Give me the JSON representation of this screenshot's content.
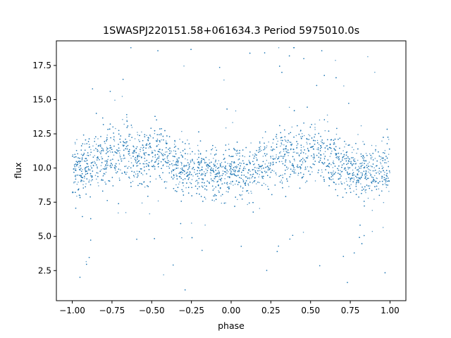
{
  "chart_data": {
    "type": "scatter",
    "title": "1SWASPJ220151.58+061634.3 Period 5975010.0s",
    "xlabel": "phase",
    "ylabel": "flux",
    "xlim": [
      -1.1,
      1.1
    ],
    "ylim": [
      0.3,
      19.3
    ],
    "x_ticks": [
      -1.0,
      -0.75,
      -0.5,
      -0.25,
      0.0,
      0.25,
      0.5,
      0.75,
      1.0
    ],
    "x_tick_labels": [
      "−1.00",
      "−0.75",
      "−0.50",
      "−0.25",
      "0.00",
      "0.25",
      "0.50",
      "0.75",
      "1.00"
    ],
    "y_ticks": [
      2.5,
      5.0,
      7.5,
      10.0,
      12.5,
      15.0,
      17.5
    ],
    "y_tick_labels": [
      "2.5",
      "5.0",
      "7.5",
      "10.0",
      "12.5",
      "15.0",
      "17.5"
    ],
    "grid": false,
    "legend": "none",
    "marker_color": "#1f77b4",
    "x_domain": [
      -1.0,
      1.0
    ],
    "profile": [
      {
        "phase": -1.0,
        "flux": 10.0,
        "spread": 1.9
      },
      {
        "phase": -0.9,
        "flux": 10.3,
        "spread": 1.8
      },
      {
        "phase": -0.75,
        "flux": 10.8,
        "spread": 2.0
      },
      {
        "phase": -0.65,
        "flux": 11.2,
        "spread": 2.0
      },
      {
        "phase": -0.55,
        "flux": 10.6,
        "spread": 2.0
      },
      {
        "phase": -0.48,
        "flux": 11.4,
        "spread": 2.1
      },
      {
        "phase": -0.4,
        "flux": 10.9,
        "spread": 1.8
      },
      {
        "phase": -0.3,
        "flux": 10.0,
        "spread": 1.7
      },
      {
        "phase": -0.2,
        "flux": 9.9,
        "spread": 1.6
      },
      {
        "phase": -0.1,
        "flux": 9.6,
        "spread": 1.6
      },
      {
        "phase": 0.0,
        "flux": 9.5,
        "spread": 1.7
      },
      {
        "phase": 0.1,
        "flux": 9.6,
        "spread": 1.7
      },
      {
        "phase": 0.2,
        "flux": 10.4,
        "spread": 1.9
      },
      {
        "phase": 0.3,
        "flux": 10.9,
        "spread": 2.0
      },
      {
        "phase": 0.4,
        "flux": 10.8,
        "spread": 2.0
      },
      {
        "phase": 0.45,
        "flux": 10.7,
        "spread": 2.0
      },
      {
        "phase": 0.52,
        "flux": 11.5,
        "spread": 2.1
      },
      {
        "phase": 0.6,
        "flux": 10.8,
        "spread": 1.8
      },
      {
        "phase": 0.7,
        "flux": 10.1,
        "spread": 1.7
      },
      {
        "phase": 0.8,
        "flux": 9.9,
        "spread": 1.7
      },
      {
        "phase": 0.9,
        "flux": 9.6,
        "spread": 1.7
      },
      {
        "phase": 1.0,
        "flux": 9.5,
        "spread": 1.7
      }
    ]
  }
}
